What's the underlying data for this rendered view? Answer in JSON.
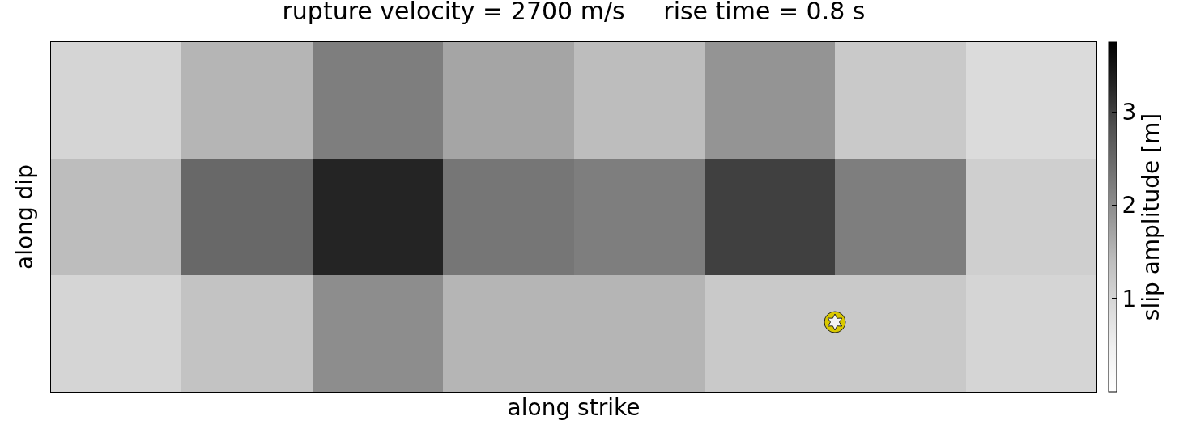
{
  "chart_data": {
    "type": "heatmap",
    "title": "rupture velocity = 2700 m/s     rise time = 0.8 s",
    "xlabel": "along strike",
    "ylabel": "along dip",
    "clabel": "slip amplitude [m]",
    "categories": [
      null,
      null,
      null,
      null,
      null,
      null,
      null,
      null
    ],
    "y_categories": [
      null,
      null,
      null
    ],
    "cells": [
      [
        1.0,
        1.5,
        2.2,
        1.7,
        1.4,
        1.9,
        1.2,
        0.9
      ],
      [
        1.4,
        2.5,
        3.3,
        2.3,
        2.2,
        3.0,
        2.2,
        1.1
      ],
      [
        1.0,
        1.3,
        2.0,
        1.5,
        1.5,
        1.2,
        1.2,
        1.0
      ]
    ],
    "clim": [
      0,
      3.75
    ],
    "cticks": [
      1,
      2,
      3
    ]
  }
}
